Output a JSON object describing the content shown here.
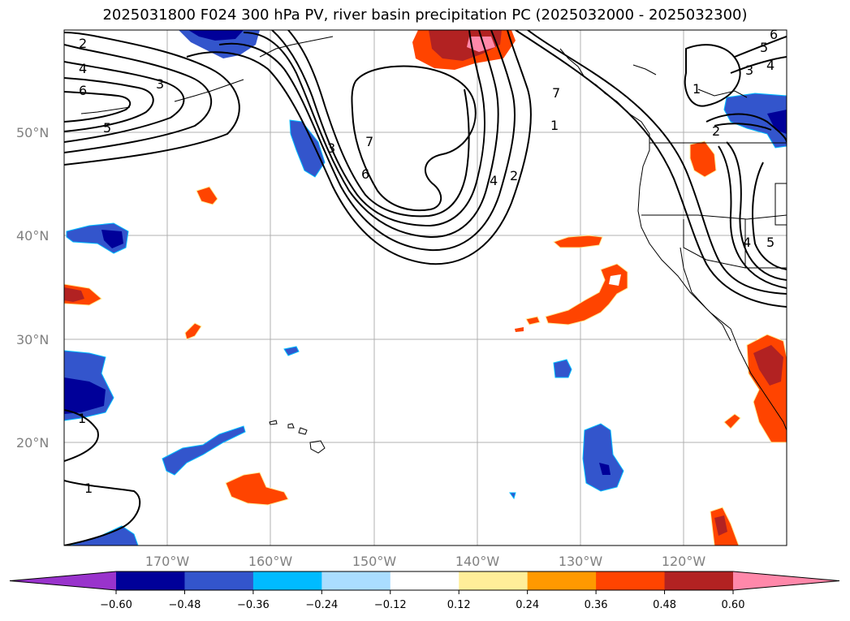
{
  "title": "2025031800 F024 300 hPa PV, river basin precipitation PC (2025032000 - 2025032300)",
  "map": {
    "lat_labels": [
      "50°N",
      "40°N",
      "30°N",
      "20°N"
    ],
    "lon_labels": [
      "170°W",
      "160°W",
      "150°W",
      "140°W",
      "130°W",
      "120°W"
    ]
  },
  "pv_contour_labels": [
    "2",
    "4",
    "6",
    "3",
    "5",
    "1",
    "1",
    "3",
    "6",
    "7",
    "4",
    "2",
    "1",
    "7",
    "1",
    "2",
    "3",
    "4",
    "5",
    "6",
    "4",
    "5"
  ],
  "colorbar": {
    "colors": [
      "#9933cc",
      "#000099",
      "#3355cc",
      "#00bbff",
      "#aaddff",
      "#ffffff",
      "#ffee99",
      "#ff9900",
      "#ff4400",
      "#b22222",
      "#ff88aa"
    ],
    "ticks": [
      "−0.60",
      "−0.48",
      "−0.36",
      "−0.24",
      "−0.12",
      "0.12",
      "0.24",
      "0.36",
      "0.48",
      "0.60"
    ]
  }
}
